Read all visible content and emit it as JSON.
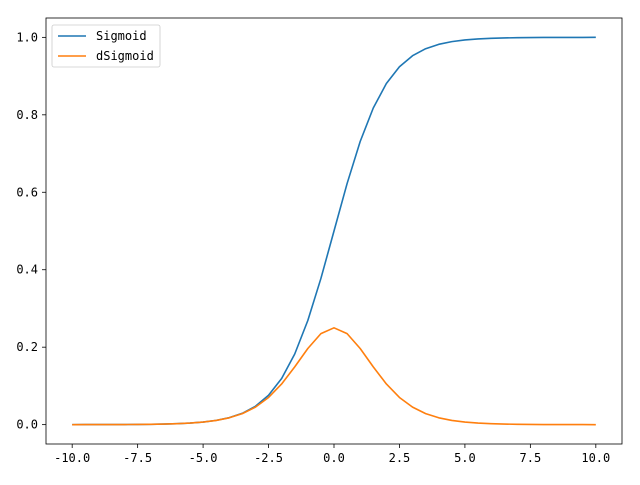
{
  "chart_data": {
    "type": "line",
    "title": "",
    "xlabel": "",
    "ylabel": "",
    "xlim": [
      -11.0,
      11.0
    ],
    "ylim": [
      -0.05,
      1.05
    ],
    "xticks": [
      -10.0,
      -7.5,
      -5.0,
      -2.5,
      0.0,
      2.5,
      5.0,
      7.5,
      10.0
    ],
    "xtick_labels": [
      "-10.0",
      "-7.5",
      "-5.0",
      "-2.5",
      "0.0",
      "2.5",
      "5.0",
      "7.5",
      "10.0"
    ],
    "yticks": [
      0.0,
      0.2,
      0.4,
      0.6,
      0.8,
      1.0
    ],
    "ytick_labels": [
      "0.0",
      "0.2",
      "0.4",
      "0.6",
      "0.8",
      "1.0"
    ],
    "grid": false,
    "legend": {
      "position": "top-left"
    },
    "x": [
      -10.0,
      -9.5,
      -9.0,
      -8.5,
      -8.0,
      -7.5,
      -7.0,
      -6.5,
      -6.0,
      -5.5,
      -5.0,
      -4.5,
      -4.0,
      -3.5,
      -3.0,
      -2.5,
      -2.0,
      -1.5,
      -1.0,
      -0.5,
      0.0,
      0.5,
      1.0,
      1.5,
      2.0,
      2.5,
      3.0,
      3.5,
      4.0,
      4.5,
      5.0,
      5.5,
      6.0,
      6.5,
      7.0,
      7.5,
      8.0,
      8.5,
      9.0,
      9.5,
      10.0
    ],
    "series": [
      {
        "name": "Sigmoid",
        "color": "#1f77b4",
        "values": [
          0.0,
          0.0001,
          0.0001,
          0.0002,
          0.0003,
          0.0006,
          0.0009,
          0.0015,
          0.0025,
          0.0041,
          0.0067,
          0.011,
          0.018,
          0.0293,
          0.0474,
          0.0759,
          0.1192,
          0.1824,
          0.2689,
          0.3775,
          0.5,
          0.6225,
          0.7311,
          0.8176,
          0.8808,
          0.9241,
          0.9526,
          0.9707,
          0.982,
          0.989,
          0.9933,
          0.9959,
          0.9975,
          0.9985,
          0.9991,
          0.9994,
          0.9997,
          0.9998,
          0.9999,
          0.9999,
          1.0
        ]
      },
      {
        "name": "dSigmoid",
        "color": "#ff7f0e",
        "values": [
          0.0,
          0.0001,
          0.0001,
          0.0002,
          0.0003,
          0.0006,
          0.0009,
          0.0015,
          0.0025,
          0.0041,
          0.0066,
          0.0109,
          0.0177,
          0.0285,
          0.0452,
          0.0701,
          0.105,
          0.1491,
          0.1966,
          0.235,
          0.25,
          0.235,
          0.1966,
          0.1491,
          0.105,
          0.0701,
          0.0452,
          0.0285,
          0.0177,
          0.0109,
          0.0066,
          0.0041,
          0.0025,
          0.0015,
          0.0009,
          0.0006,
          0.0003,
          0.0002,
          0.0001,
          0.0001,
          0.0
        ]
      }
    ]
  }
}
